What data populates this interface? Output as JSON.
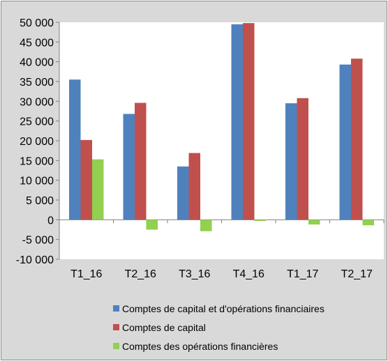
{
  "chart_data": {
    "type": "bar",
    "title": "",
    "xlabel": "",
    "ylabel": "",
    "categories": [
      "T1_16",
      "T2_16",
      "T3_16",
      "T4_16",
      "T1_17",
      "T2_17"
    ],
    "series": [
      {
        "name": "Comptes de capital et d'opérations financiaires",
        "color": "#4f81bd",
        "values": [
          35500,
          26800,
          13500,
          49500,
          29500,
          39300
        ]
      },
      {
        "name": "Comptes de capital",
        "color": "#c0504d",
        "values": [
          20200,
          29600,
          16900,
          49800,
          30800,
          40800
        ]
      },
      {
        "name": "Comptes des opérations financières",
        "color": "#92d050",
        "values": [
          15300,
          -2500,
          -2900,
          -300,
          -1200,
          -1400
        ]
      }
    ],
    "ylim": [
      -10000,
      50000
    ],
    "yticks": [
      50000,
      45000,
      40000,
      35000,
      30000,
      25000,
      20000,
      15000,
      10000,
      5000,
      0,
      -5000,
      -10000
    ],
    "ytick_labels": [
      "50 000",
      "45 000",
      "40 000",
      "35 000",
      "30 000",
      "25 000",
      "20 000",
      "15 000",
      "10 000",
      "5 000",
      "0",
      "-5 000",
      "-10 000"
    ],
    "grid": false,
    "legend_position": "bottom",
    "plot_background": "#ffffff",
    "chart_background": "#d9d9d9"
  }
}
